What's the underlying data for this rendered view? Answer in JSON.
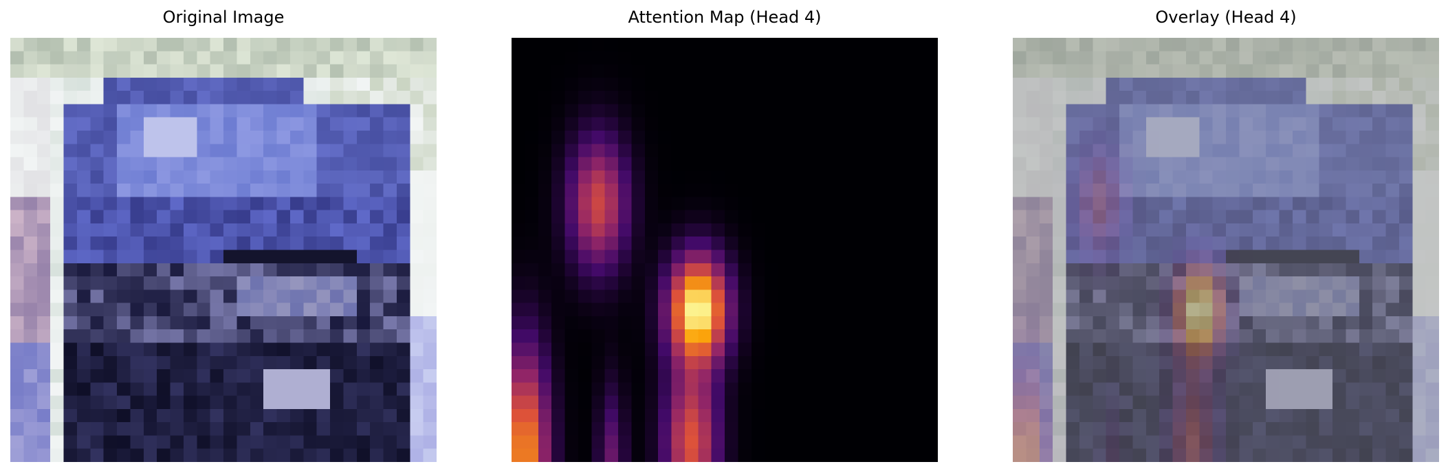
{
  "panels": {
    "original": {
      "title": "Original Image"
    },
    "attention": {
      "title": "Attention Map (Head 4)"
    },
    "overlay": {
      "title": "Overlay (Head 4)"
    }
  },
  "image_content": {
    "subject": "low-resolution dark blue car, front view",
    "grid": "32x32 pixels",
    "palette": [
      "#f2f4f4",
      "#dfe7d8",
      "#8fa18a",
      "#6f79cf",
      "#2b2f64",
      "#12122a",
      "#b7b8e6",
      "#c7a9bd"
    ]
  },
  "attention_map": {
    "colormap": "inferno",
    "colors": [
      "#000004",
      "#420a68",
      "#932667",
      "#dd513a",
      "#fca50a",
      "#fcffa4"
    ],
    "background": "#000000"
  }
}
